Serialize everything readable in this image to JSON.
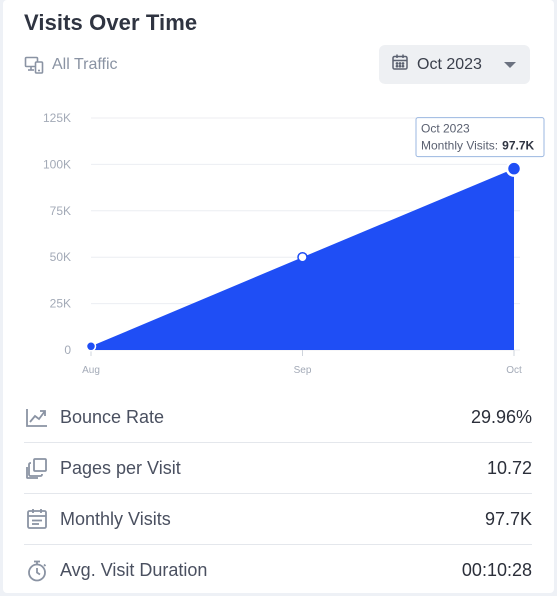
{
  "widget": {
    "title": "Visits Over Time",
    "filter_label": "All Traffic",
    "filter_icon": "devices-icon",
    "month_select": {
      "value": "Oct 2023",
      "icon": "calendar-icon"
    }
  },
  "chart_data": {
    "type": "area",
    "categories": [
      "Aug",
      "Sep",
      "Oct"
    ],
    "series": [
      {
        "values": [
          2000,
          50000,
          97700
        ]
      }
    ],
    "ylim": [
      0,
      125000
    ],
    "yticks": [
      "0",
      "25K",
      "50K",
      "75K",
      "100K",
      "125K"
    ],
    "grid": true,
    "colors": {
      "area": "#1f4ef5",
      "grid": "#eceef2"
    },
    "tooltip": {
      "title": "Oct 2023",
      "label": "Monthly Visits:",
      "value": "97.7K"
    }
  },
  "metrics": [
    {
      "icon": "trend-down-icon",
      "label": "Bounce Rate",
      "value": "29.96%"
    },
    {
      "icon": "pages-icon",
      "label": "Pages per Visit",
      "value": "10.72"
    },
    {
      "icon": "calendar-list-icon",
      "label": "Monthly Visits",
      "value": "97.7K"
    },
    {
      "icon": "stopwatch-icon",
      "label": "Avg. Visit Duration",
      "value": "00:10:28"
    }
  ]
}
